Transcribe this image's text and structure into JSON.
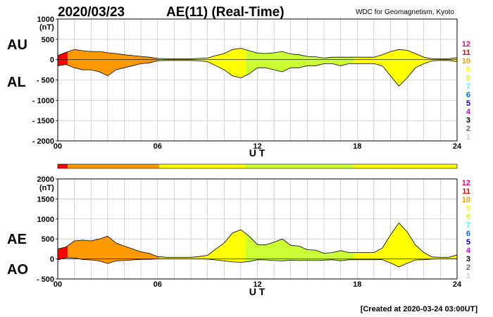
{
  "header": {
    "date": "2020/03/23",
    "title": "AE(11) (Real-Time)",
    "source": "WDC for Geomagnetism, Kyoto"
  },
  "footer": {
    "created": "[Created at 2020-03-24 03:00UT]"
  },
  "station_count_legend": [
    "12",
    "11",
    "10",
    "9",
    "8",
    "7",
    "6",
    "5",
    "4",
    "3",
    "2",
    "1"
  ],
  "station_count_colors": [
    "#ff0080",
    "#ff0000",
    "#ff9900",
    "#ffff00",
    "#ccff33",
    "#33ffff",
    "#0066ff",
    "#0000cc",
    "#cc00cc",
    "#000000",
    "#666666",
    "#cccccc"
  ],
  "chart_data": [
    {
      "type": "area",
      "panel": "top",
      "side_labels": [
        "AU",
        "AL"
      ],
      "unit_label": "(nT)",
      "xlabel": "U T",
      "xlim": [
        0,
        24
      ],
      "ylim": [
        -2000,
        1000
      ],
      "x_ticks": [
        "00",
        "06",
        "12",
        "18",
        "24"
      ],
      "y_ticks": [
        1000,
        500,
        0,
        -500,
        -1000,
        -1500,
        -2000
      ],
      "grid": true,
      "x": [
        0,
        0.5,
        1,
        1.5,
        2,
        2.5,
        3,
        3.5,
        4,
        4.5,
        5,
        5.5,
        6,
        6.5,
        7,
        7.5,
        8,
        8.5,
        9,
        9.5,
        10,
        10.5,
        11,
        11.5,
        12,
        12.5,
        13,
        13.5,
        14,
        14.5,
        15,
        15.5,
        16,
        16.5,
        17,
        17.5,
        18,
        18.5,
        19,
        19.5,
        20,
        20.5,
        21,
        21.5,
        22,
        22.5,
        23,
        23.5,
        24
      ],
      "series": [
        {
          "name": "AU",
          "values": [
            100,
            180,
            250,
            220,
            200,
            200,
            170,
            150,
            120,
            100,
            80,
            60,
            30,
            20,
            20,
            20,
            20,
            30,
            40,
            100,
            150,
            250,
            280,
            220,
            160,
            150,
            170,
            200,
            140,
            120,
            80,
            70,
            40,
            60,
            60,
            60,
            60,
            60,
            60,
            120,
            200,
            250,
            230,
            150,
            60,
            20,
            20,
            20,
            50
          ]
        },
        {
          "name": "AL",
          "values": [
            -150,
            -120,
            -200,
            -250,
            -250,
            -300,
            -400,
            -250,
            -200,
            -150,
            -100,
            -80,
            -30,
            -20,
            -20,
            -20,
            -20,
            -30,
            -50,
            -150,
            -250,
            -400,
            -450,
            -350,
            -200,
            -200,
            -250,
            -300,
            -200,
            -200,
            -150,
            -150,
            -100,
            -100,
            -150,
            -100,
            -100,
            -100,
            -100,
            -150,
            -400,
            -650,
            -450,
            -200,
            -100,
            -30,
            -20,
            -20,
            -50
          ]
        }
      ]
    },
    {
      "type": "area",
      "panel": "bottom",
      "side_labels": [
        "AE",
        "AO"
      ],
      "unit_label": "(nT)",
      "xlabel": "U T",
      "xlim": [
        0,
        24
      ],
      "ylim": [
        -500,
        2000
      ],
      "x_ticks": [
        "00",
        "06",
        "12",
        "18",
        "24"
      ],
      "y_ticks": [
        2000,
        1500,
        1000,
        500,
        0,
        -500
      ],
      "grid": true,
      "x": [
        0,
        0.5,
        1,
        1.5,
        2,
        2.5,
        3,
        3.5,
        4,
        4.5,
        5,
        5.5,
        6,
        6.5,
        7,
        7.5,
        8,
        8.5,
        9,
        9.5,
        10,
        10.5,
        11,
        11.5,
        12,
        12.5,
        13,
        13.5,
        14,
        14.5,
        15,
        15.5,
        16,
        16.5,
        17,
        17.5,
        18,
        18.5,
        19,
        19.5,
        20,
        20.5,
        21,
        21.5,
        22,
        22.5,
        23,
        23.5,
        24
      ],
      "series": [
        {
          "name": "AE",
          "values": [
            250,
            300,
            450,
            470,
            450,
            500,
            570,
            400,
            320,
            250,
            180,
            140,
            60,
            40,
            40,
            40,
            40,
            60,
            90,
            250,
            400,
            650,
            730,
            570,
            360,
            350,
            420,
            500,
            340,
            320,
            230,
            220,
            140,
            160,
            210,
            160,
            160,
            160,
            160,
            270,
            600,
            900,
            680,
            350,
            160,
            50,
            40,
            40,
            100
          ]
        },
        {
          "name": "AO",
          "values": [
            -25,
            30,
            25,
            -15,
            -25,
            -50,
            -115,
            -50,
            -40,
            -25,
            -10,
            -10,
            0,
            0,
            0,
            0,
            0,
            0,
            -5,
            -25,
            -50,
            -75,
            -85,
            -65,
            -20,
            -25,
            -40,
            -50,
            -30,
            -40,
            -35,
            -40,
            -30,
            -20,
            -45,
            -20,
            -20,
            -20,
            -20,
            -15,
            -100,
            -200,
            -110,
            -25,
            -20,
            -5,
            0,
            0,
            0
          ]
        }
      ]
    }
  ],
  "station_bar": {
    "segments": [
      {
        "from": 0,
        "to": 0.6,
        "count": 11
      },
      {
        "from": 0.6,
        "to": 6.1,
        "count": 10
      },
      {
        "from": 6.1,
        "to": 6.6,
        "count": 9
      },
      {
        "from": 6.6,
        "to": 11.3,
        "count": 9
      },
      {
        "from": 11.3,
        "to": 17.8,
        "count": 8
      },
      {
        "from": 17.8,
        "to": 24,
        "count": 9
      }
    ]
  }
}
